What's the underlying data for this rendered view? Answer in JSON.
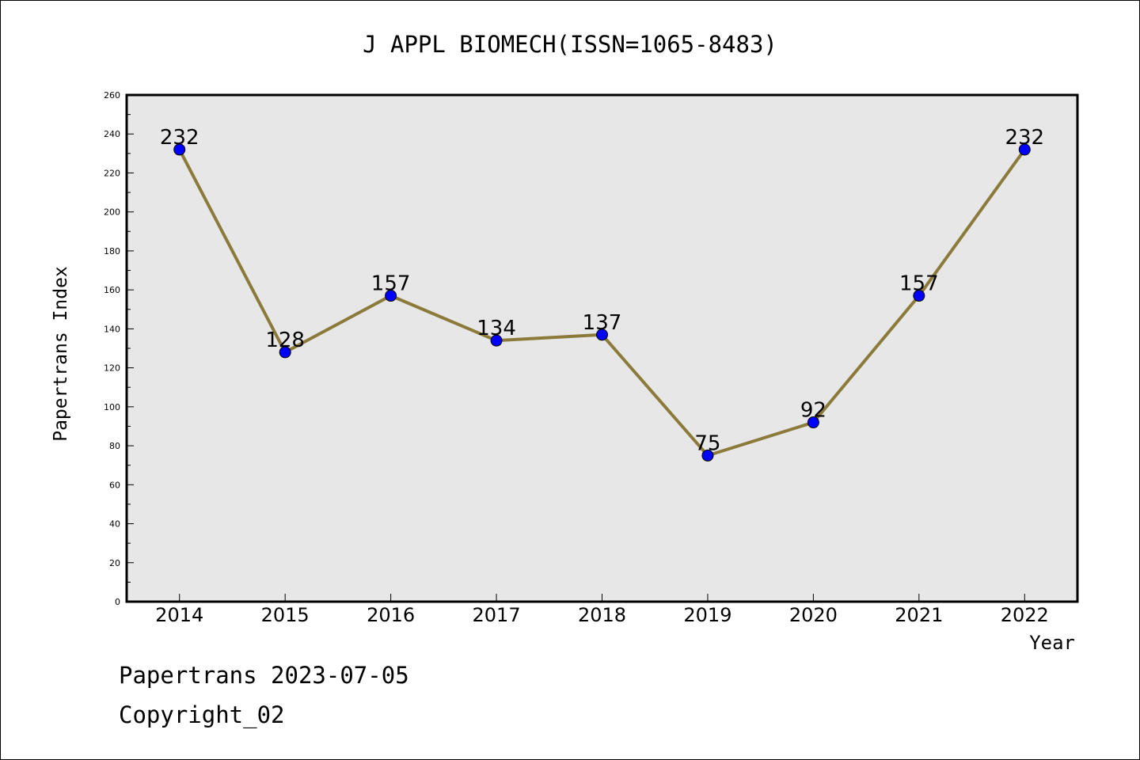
{
  "chart_data": {
    "type": "line",
    "title": "J APPL BIOMECH(ISSN=1065-8483)",
    "xlabel": "Year",
    "ylabel": "Papertrans Index",
    "categories": [
      "2014",
      "2015",
      "2016",
      "2017",
      "2018",
      "2019",
      "2020",
      "2021",
      "2022"
    ],
    "values": [
      232,
      128,
      157,
      134,
      137,
      75,
      92,
      157,
      232
    ],
    "data_labels": [
      "232",
      "128",
      "157",
      "134",
      "137",
      "75",
      "92",
      "157",
      "232"
    ],
    "ylim": [
      0,
      260
    ],
    "yticks": [
      0,
      20,
      40,
      60,
      80,
      100,
      120,
      140,
      160,
      180,
      200,
      220,
      240,
      260
    ],
    "ytick_labels": [
      "0",
      "20",
      "40",
      "60",
      "80",
      "100",
      "120",
      "140",
      "160",
      "180",
      "200",
      "220",
      "240",
      "260"
    ],
    "grid": false,
    "line_color": "#8c7a3a",
    "marker_color": "#0000ff",
    "plot_background": "#e7e7e7"
  },
  "footer": {
    "line1": "Papertrans 2023-07-05",
    "line2": "Copyright_02"
  }
}
